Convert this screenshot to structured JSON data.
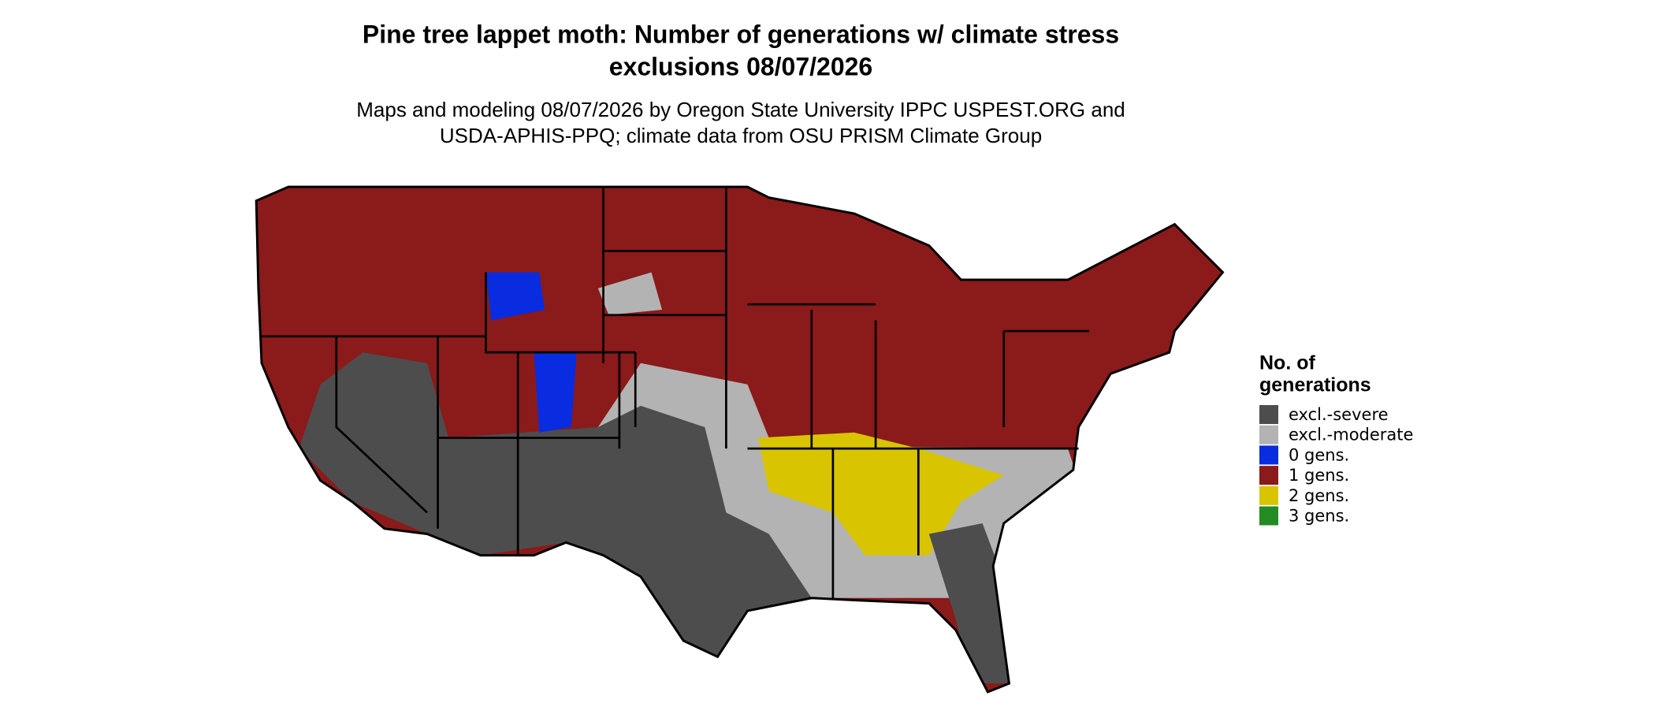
{
  "title": [
    "Pine tree lappet moth: Number of generations w/ climate stress",
    "exclusions 08/07/2026"
  ],
  "subtitle": [
    "Maps and modeling 08/07/2026 by Oregon State University IPPC USPEST.ORG and",
    "USDA-APHIS-PPQ; climate data from OSU PRISM Climate Group"
  ],
  "legend": {
    "title": [
      "No. of",
      "generations"
    ],
    "items": [
      {
        "label": "excl.-severe",
        "color": "#4d4d4d"
      },
      {
        "label": "excl.-moderate",
        "color": "#b3b3b3"
      },
      {
        "label": "0 gens.",
        "color": "#0a2ce0"
      },
      {
        "label": "1 gens.",
        "color": "#8b1a1a"
      },
      {
        "label": "2 gens.",
        "color": "#d8c400"
      },
      {
        "label": "3 gens.",
        "color": "#228b22"
      }
    ]
  }
}
